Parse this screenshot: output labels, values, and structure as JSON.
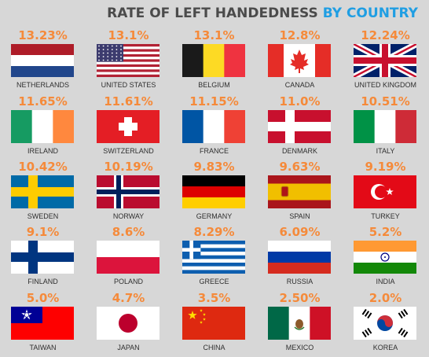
{
  "title_part1": "RATE OF LEFT HANDEDNESS",
  "title_part2": "BY COUNTRY",
  "colors": {
    "title_dark": "#4b4b4b",
    "title_accent": "#1f9ee3",
    "value_orange": "#f58a3a",
    "background": "#d7d7d7"
  },
  "chart_data": {
    "type": "table",
    "title": "RATE OF LEFT HANDEDNESS BY COUNTRY",
    "categories": [
      "NETHERLANDS",
      "UNITED STATES",
      "BELGIUM",
      "CANADA",
      "UNITED KINGDOM",
      "IRELAND",
      "SWITZERLAND",
      "FRANCE",
      "DENMARK",
      "ITALY",
      "SWEDEN",
      "NORWAY",
      "GERMANY",
      "SPAIN",
      "TURKEY",
      "FINLAND",
      "POLAND",
      "GREECE",
      "RUSSIA",
      "INDIA",
      "TAIWAN",
      "JAPAN",
      "CHINA",
      "MEXICO",
      "KOREA"
    ],
    "values": [
      13.23,
      13.1,
      13.1,
      12.8,
      12.24,
      11.65,
      11.61,
      11.15,
      11.0,
      10.51,
      10.42,
      10.19,
      9.83,
      9.63,
      9.19,
      9.1,
      8.6,
      8.29,
      6.09,
      5.2,
      5.0,
      4.7,
      3.5,
      2.5,
      2.0
    ],
    "value_labels": [
      "13.23%",
      "13.1%",
      "13.1%",
      "12.8%",
      "12.24%",
      "11.65%",
      "11.61%",
      "11.15%",
      "11.0%",
      "10.51%",
      "10.42%",
      "10.19%",
      "9.83%",
      "9.63%",
      "9.19%",
      "9.1%",
      "8.6%",
      "8.29%",
      "6.09%",
      "5.2%",
      "5.0%",
      "4.7%",
      "3.5%",
      "2.50%",
      "2.0%"
    ],
    "flag_icons": [
      "netherlands-flag",
      "usa-flag",
      "belgium-flag",
      "canada-flag",
      "uk-flag",
      "ireland-flag",
      "switzerland-flag",
      "france-flag",
      "denmark-flag",
      "italy-flag",
      "sweden-flag",
      "norway-flag",
      "germany-flag",
      "spain-flag",
      "turkey-flag",
      "finland-flag",
      "poland-flag",
      "greece-flag",
      "russia-flag",
      "india-flag",
      "taiwan-flag",
      "japan-flag",
      "china-flag",
      "mexico-flag",
      "korea-flag"
    ]
  }
}
